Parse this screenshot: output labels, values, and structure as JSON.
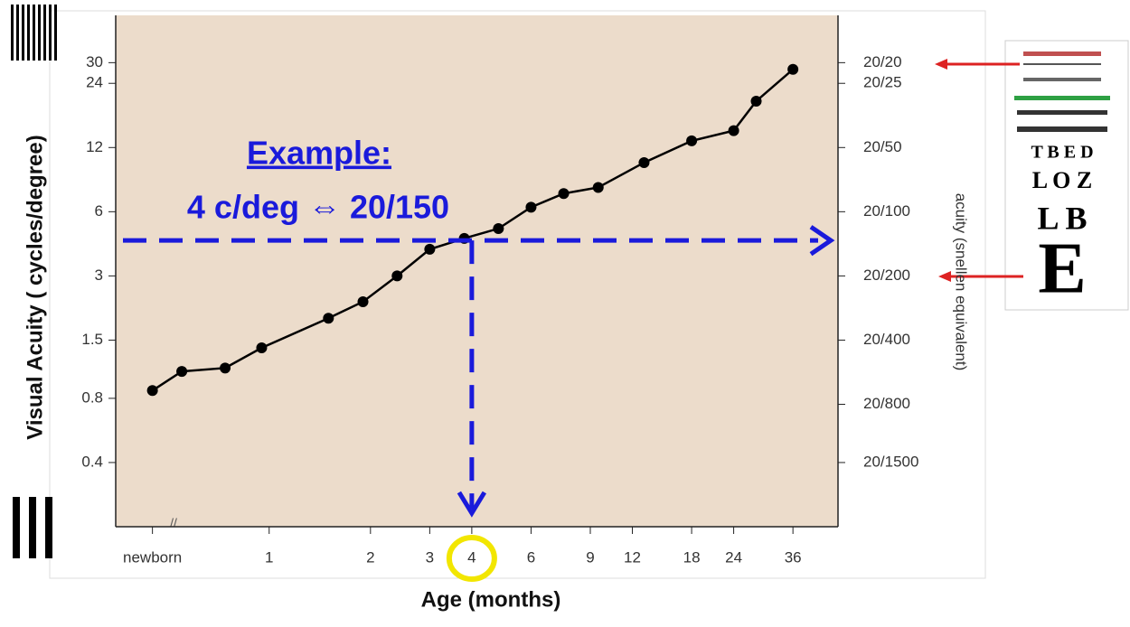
{
  "chart_data": {
    "type": "line",
    "x_label": "Age (months)",
    "y_label": "Visual Acuity ( cycles/degree)",
    "y2_label": "acuity (snellen equivalent)",
    "annotation_title": "Example:",
    "annotation_text": "4 c/deg ⇔ 20/150",
    "axis_break": "//",
    "x_scale": "log",
    "y_scale": "log",
    "x": [
      0.45,
      0.55,
      0.74,
      0.95,
      1.5,
      1.9,
      2.4,
      3,
      3.8,
      4.8,
      6,
      7.5,
      9.5,
      13,
      18,
      24,
      28,
      36
    ],
    "values": [
      0.87,
      1.07,
      1.11,
      1.38,
      1.9,
      2.27,
      3,
      4,
      4.5,
      5,
      6.3,
      7.3,
      7.8,
      10.2,
      12.9,
      14.4,
      19.8,
      27.9
    ],
    "color": "#000000",
    "highlight": {
      "x": 4,
      "y": 4.4,
      "color": "#1a1adb"
    },
    "xlim": [
      0.35,
      49
    ],
    "xticks": [
      {
        "value": 0.45,
        "label": "newborn"
      },
      1,
      2,
      3,
      4,
      6,
      9,
      12,
      18,
      24,
      36
    ],
    "ylim": [
      0.2,
      50
    ],
    "yticks": [
      0.4,
      0.8,
      1.5,
      3,
      6,
      12,
      24,
      30
    ],
    "y2lim": [
      0.2,
      50
    ],
    "y2ticks": [
      {
        "value": 0.4,
        "label": "20/1500"
      },
      {
        "value": 0.75,
        "label": "20/800"
      },
      {
        "value": 1.5,
        "label": "20/400"
      },
      {
        "value": 3,
        "label": "20/200"
      },
      {
        "value": 6,
        "label": "20/100"
      },
      {
        "value": 12,
        "label": "20/50"
      },
      {
        "value": 24,
        "label": "20/25"
      },
      {
        "value": 30,
        "label": "20/20"
      }
    ],
    "eye_chart": [
      "E",
      "L B",
      "L O Z",
      "T B E D"
    ]
  }
}
